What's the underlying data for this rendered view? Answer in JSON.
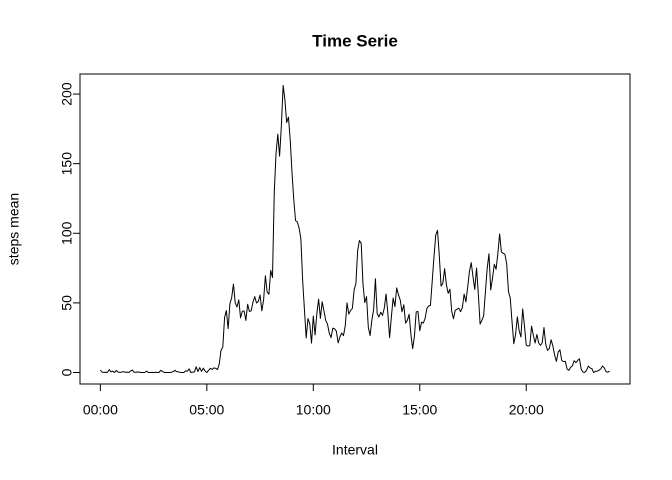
{
  "chart_data": {
    "type": "line",
    "title": "Time Serie",
    "x_label": "Interval",
    "y_label": "steps mean",
    "color": "#000000",
    "x": [
      0,
      5,
      10,
      15,
      20,
      25,
      30,
      35,
      40,
      45,
      50,
      55,
      60,
      65,
      70,
      75,
      80,
      85,
      90,
      95,
      100,
      105,
      110,
      115,
      120,
      125,
      130,
      135,
      140,
      145,
      150,
      155,
      160,
      165,
      170,
      175,
      180,
      185,
      190,
      195,
      200,
      205,
      210,
      215,
      220,
      225,
      230,
      235,
      240,
      245,
      250,
      255,
      260,
      265,
      270,
      275,
      280,
      285,
      290,
      295,
      300,
      305,
      310,
      315,
      320,
      325,
      330,
      335,
      340,
      345,
      350,
      355,
      360,
      365,
      370,
      375,
      380,
      385,
      390,
      395,
      400,
      405,
      410,
      415,
      420,
      425,
      430,
      435,
      440,
      445,
      450,
      455,
      460,
      465,
      470,
      475,
      480,
      485,
      490,
      495,
      500,
      505,
      510,
      515,
      520,
      525,
      530,
      535,
      540,
      545,
      550,
      555,
      560,
      565,
      570,
      575,
      580,
      585,
      590,
      595,
      600,
      605,
      610,
      615,
      620,
      625,
      630,
      635,
      640,
      645,
      650,
      655,
      660,
      665,
      670,
      675,
      680,
      685,
      690,
      695,
      700,
      705,
      710,
      715,
      720,
      725,
      730,
      735,
      740,
      745,
      750,
      755,
      760,
      765,
      770,
      775,
      780,
      785,
      790,
      795,
      800,
      805,
      810,
      815,
      820,
      825,
      830,
      835,
      840,
      845,
      850,
      855,
      860,
      865,
      870,
      875,
      880,
      885,
      890,
      895,
      900,
      905,
      910,
      915,
      920,
      925,
      930,
      935,
      940,
      945,
      950,
      955,
      960,
      965,
      970,
      975,
      980,
      985,
      990,
      995,
      1000,
      1005,
      1010,
      1015,
      1020,
      1025,
      1030,
      1035,
      1040,
      1045,
      1050,
      1055,
      1060,
      1065,
      1070,
      1075,
      1080,
      1085,
      1090,
      1095,
      1100,
      1105,
      1110,
      1115,
      1120,
      1125,
      1130,
      1135,
      1140,
      1145,
      1150,
      1155,
      1160,
      1165,
      1170,
      1175,
      1180,
      1185,
      1190,
      1195,
      1200,
      1205,
      1210,
      1215,
      1220,
      1225,
      1230,
      1235,
      1240,
      1245,
      1250,
      1255,
      1260,
      1265,
      1270,
      1275,
      1280,
      1285,
      1290,
      1295,
      1300,
      1305,
      1310,
      1315,
      1320,
      1325,
      1330,
      1335,
      1340,
      1345,
      1350,
      1355,
      1360,
      1365,
      1370,
      1375,
      1380,
      1385,
      1390,
      1395,
      1400,
      1405,
      1410,
      1415,
      1420,
      1425,
      1430,
      1435
    ],
    "values": [
      1.7,
      0.3,
      0.1,
      0.2,
      0.1,
      2.1,
      0.5,
      0.9,
      0,
      1.5,
      0.3,
      0.1,
      0.3,
      0.7,
      0.2,
      0.3,
      0,
      1.1,
      1.8,
      0.2,
      0.2,
      0.4,
      0.3,
      0,
      0,
      0,
      1.1,
      0,
      0,
      0.1,
      0,
      0.2,
      0,
      0,
      1.5,
      0.9,
      0,
      0,
      0,
      0,
      0.2,
      0.6,
      1.6,
      0.6,
      0.5,
      0.1,
      0,
      0,
      1.2,
      0.9,
      2.6,
      0,
      0.3,
      0.4,
      4.1,
      0.7,
      3.5,
      0.8,
      3.1,
      1.1,
      0,
      1.6,
      3,
      2.2,
      3.3,
      3,
      2.1,
      6.1,
      16,
      18.3,
      39.5,
      44.5,
      31.5,
      49.3,
      53.8,
      63.5,
      50,
      47.1,
      52.2,
      39.3,
      44,
      44.2,
      37.4,
      49,
      43.8,
      44.4,
      50.5,
      54.5,
      49.9,
      51,
      55.7,
      44.3,
      52.3,
      69.5,
      57.8,
      56.2,
      73.4,
      68.2,
      129.4,
      157.5,
      171.2,
      155.4,
      177.3,
      206.2,
      195.9,
      179.6,
      183.4,
      167,
      143.5,
      124,
      109.1,
      108.1,
      103.7,
      96,
      66.2,
      45.2,
      24.8,
      38.8,
      35,
      21.1,
      40.6,
      27,
      42.4,
      52.7,
      38.9,
      50.8,
      44.3,
      37.4,
      34.7,
      28.3,
      25.1,
      31.9,
      31.4,
      29.7,
      21.3,
      25.5,
      28.4,
      26.5,
      33.4,
      50,
      42,
      44.6,
      46,
      59.2,
      63.9,
      87.7,
      94.8,
      92.8,
      63.4,
      50.2,
      54.5,
      32.4,
      26.5,
      37.7,
      45.1,
      67.3,
      42.3,
      39.9,
      43.3,
      41,
      46.2,
      56.4,
      42.8,
      25.1,
      40,
      53.5,
      47.3,
      60.8,
      55.8,
      52,
      43.6,
      48.7,
      35.5,
      37.5,
      41.8,
      27.5,
      17.1,
      26.1,
      43.6,
      43.8,
      30,
      36.1,
      35.5,
      38.8,
      46,
      47.8,
      48.1,
      65.3,
      82.9,
      98.7,
      102.1,
      84,
      62.1,
      64.1,
      74.5,
      63.2,
      56.9,
      59.8,
      43.9,
      38.6,
      44.7,
      45.5,
      46.2,
      43.7,
      46.6,
      56.3,
      50.7,
      61.2,
      72.7,
      78.9,
      68.9,
      59.7,
      75.1,
      56.5,
      34.8,
      37.5,
      40.7,
      58,
      74.7,
      85.3,
      59.3,
      67.8,
      77.7,
      74.2,
      85.3,
      99.5,
      86.6,
      85.6,
      84.9,
      77.8,
      58,
      53.4,
      36.3,
      20.7,
      27.4,
      40,
      30.2,
      25.5,
      45.7,
      33.5,
      19.6,
      19,
      19.3,
      33.3,
      26.8,
      21.2,
      27.3,
      21.3,
      19.5,
      21.3,
      32.3,
      20.2,
      15.9,
      17.2,
      23.5,
      19.2,
      12.5,
      8,
      14.7,
      16.3,
      8.7,
      7.8,
      8.1,
      2.6,
      1.5,
      3.7,
      4.8,
      8.5,
      7.1,
      8.7,
      9.8,
      2.2,
      0.3,
      0.1,
      1.6,
      4.6,
      3.3,
      2.8,
      0,
      0.8,
      1,
      1.6,
      2.6,
      4.7,
      3.3,
      0.6,
      0.2,
      1.1
    ],
    "xlim": [
      -57.4,
      1492.4
    ],
    "xticks": [
      {
        "value": 0,
        "label": "00:00"
      },
      {
        "value": 300,
        "label": "05:00"
      },
      {
        "value": 600,
        "label": "10:00"
      },
      {
        "value": 900,
        "label": "15:00"
      },
      {
        "value": 1200,
        "label": "20:00"
      }
    ],
    "ylim": [
      -8.25,
      214.4
    ],
    "yticks": [
      0,
      50,
      100,
      150,
      200
    ]
  }
}
